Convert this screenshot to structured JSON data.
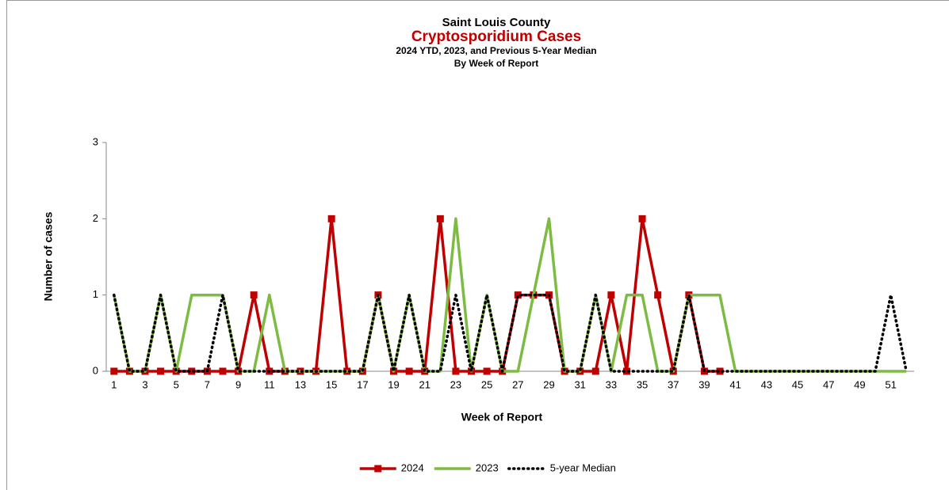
{
  "chart_data": {
    "type": "line",
    "title": "Saint Louis County",
    "subtitle": "Cryptosporidium Cases",
    "subtitle2": "2024 YTD, 2023, and Previous 5-Year Median",
    "subtitle3": "By Week of Report",
    "xlabel": "Week of Report",
    "ylabel": "Number of cases",
    "categories": [
      1,
      null,
      3,
      null,
      5,
      null,
      7,
      null,
      9,
      null,
      11,
      null,
      13,
      null,
      15,
      null,
      17,
      null,
      19,
      null,
      21,
      null,
      23,
      null,
      25,
      null,
      27,
      null,
      29,
      null,
      31,
      null,
      33,
      null,
      35,
      null,
      37,
      null,
      39,
      null,
      41,
      null,
      43,
      null,
      45,
      null,
      47,
      null,
      49,
      null,
      51,
      null
    ],
    "ylim": [
      0,
      3
    ],
    "yticks": [
      0,
      1,
      2,
      3
    ],
    "legend": "bottom",
    "series": [
      {
        "name": "2024",
        "color": "#c00000",
        "style": "solid",
        "marker": "square",
        "values": [
          0,
          0,
          0,
          0,
          0,
          0,
          0,
          0,
          0,
          1,
          0,
          0,
          0,
          0,
          2,
          0,
          0,
          1,
          0,
          0,
          0,
          2,
          0,
          0,
          0,
          0,
          1,
          1,
          1,
          0,
          0,
          0,
          1,
          0,
          2,
          1,
          0,
          1,
          0,
          0,
          null,
          null,
          null,
          null,
          null,
          null,
          null,
          null,
          null,
          null,
          null,
          null
        ]
      },
      {
        "name": "2023",
        "color": "#7dbb42",
        "style": "solid",
        "marker": "none",
        "values": [
          1,
          0,
          0,
          1,
          0,
          1,
          1,
          1,
          0,
          0,
          1,
          0,
          0,
          0,
          0,
          0,
          0,
          1,
          0,
          1,
          0,
          0,
          2,
          0,
          1,
          0,
          0,
          1,
          2,
          0,
          0,
          1,
          0,
          1,
          1,
          0,
          0,
          1,
          1,
          1,
          0,
          0,
          0,
          0,
          0,
          0,
          0,
          0,
          0,
          0,
          0,
          0
        ]
      },
      {
        "name": "5-year Median",
        "color": "#000000",
        "style": "dotted",
        "marker": "none",
        "values": [
          1,
          0,
          0,
          1,
          0,
          0,
          0,
          1,
          0,
          0,
          0,
          0,
          0,
          0,
          0,
          0,
          0,
          1,
          0,
          1,
          0,
          0,
          1,
          0,
          1,
          0,
          1,
          1,
          1,
          0,
          0,
          1,
          0,
          0,
          0,
          0,
          0,
          1,
          0,
          0,
          0,
          0,
          0,
          0,
          0,
          0,
          0,
          0,
          0,
          0,
          1,
          0
        ]
      }
    ]
  }
}
